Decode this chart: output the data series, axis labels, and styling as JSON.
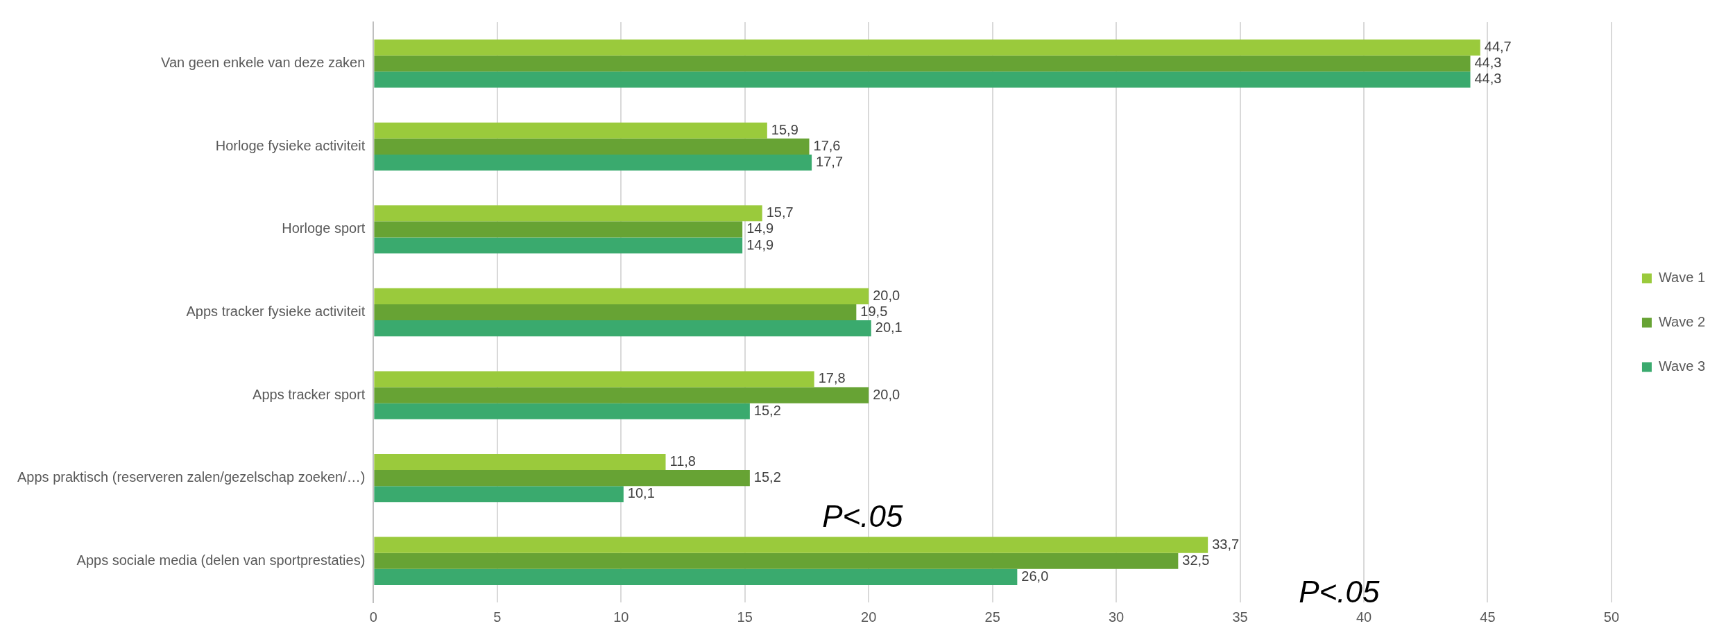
{
  "chart_data": {
    "type": "bar",
    "orientation": "horizontal",
    "categories": [
      "Van geen enkele van deze zaken",
      "Horloge fysieke activiteit",
      "Horloge sport",
      "Apps tracker fysieke activiteit",
      "Apps tracker sport",
      "Apps praktisch (reserveren zalen/gezelschap zoeken/…)",
      "Apps sociale media (delen van sportprestaties)"
    ],
    "series": [
      {
        "name": "Wave 1",
        "color": "#9aca3c",
        "values": [
          44.7,
          15.9,
          15.7,
          20.0,
          17.8,
          11.8,
          33.7
        ],
        "value_labels": [
          "44,7",
          "15,9",
          "15,7",
          "20,0",
          "17,8",
          "11,8",
          "33,7"
        ]
      },
      {
        "name": "Wave 2",
        "color": "#67a334",
        "values": [
          44.3,
          17.6,
          14.9,
          19.5,
          20.0,
          15.2,
          32.5
        ],
        "value_labels": [
          "44,3",
          "17,6",
          "14,9",
          "19,5",
          "20,0",
          "15,2",
          "32,5"
        ]
      },
      {
        "name": "Wave 3",
        "color": "#3aaa6e",
        "values": [
          44.3,
          17.7,
          14.9,
          20.1,
          15.2,
          10.1,
          26.0
        ],
        "value_labels": [
          "44,3",
          "17,7",
          "14,9",
          "20,1",
          "15,2",
          "10,1",
          "26,0"
        ]
      }
    ],
    "xlim": [
      0,
      50
    ],
    "xticks": [
      0,
      5,
      10,
      15,
      20,
      25,
      30,
      35,
      40,
      45,
      50
    ],
    "grid": "x",
    "legend": "right",
    "annotations": [
      "P<.05",
      "P<.05"
    ]
  }
}
